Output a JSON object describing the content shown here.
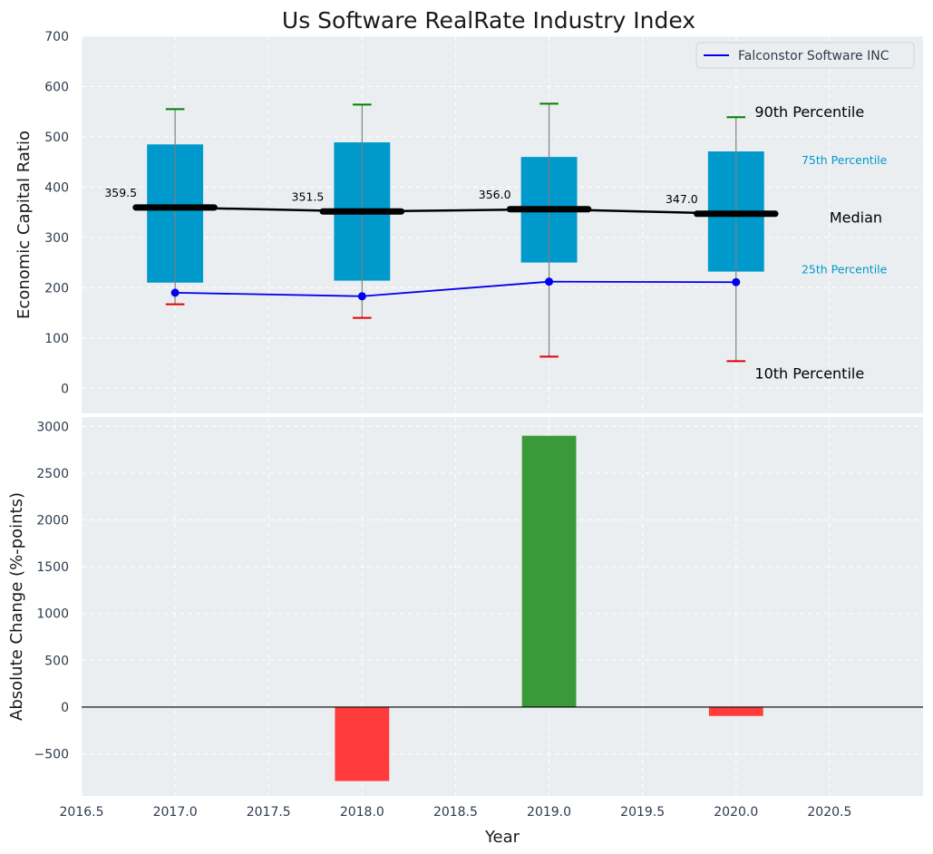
{
  "chart_data": [
    {
      "type": "box",
      "title": "Us Software RealRate Industry Index",
      "ylabel": "Economic Capital Ratio",
      "xlim": [
        2016.5,
        2021.0
      ],
      "ylim": [
        -50,
        700
      ],
      "yticks": [
        0,
        100,
        200,
        300,
        400,
        500,
        600,
        700
      ],
      "grid": true,
      "legend_placement": "top-right",
      "years": [
        2017,
        2018,
        2019,
        2020
      ],
      "p10": [
        167,
        140,
        63,
        54
      ],
      "p25": [
        210,
        214,
        250,
        232
      ],
      "median": [
        359.5,
        351.5,
        356.0,
        347.0
      ],
      "median_labels": [
        "359.5",
        "351.5",
        "356.0",
        "347.0"
      ],
      "p75": [
        485,
        489,
        460,
        471
      ],
      "p90": [
        555,
        564,
        566,
        539
      ],
      "series": [
        {
          "name": "Falconstor Software INC",
          "values": [
            190,
            183,
            212,
            211
          ],
          "color": "#0000ee"
        }
      ],
      "annotations": {
        "p90": "90th Percentile",
        "p75": "75th Percentile",
        "median": "Median",
        "p25": "25th Percentile",
        "p10": "10th Percentile"
      },
      "colors": {
        "box": "#0099cc",
        "median_line": "#000000",
        "p90_cap": "#008000",
        "p10_cap": "#e00000",
        "whisker": "#808080"
      }
    },
    {
      "type": "bar",
      "ylabel": "Absolute Change (%-points)",
      "xlabel": "Year",
      "xlim": [
        2016.5,
        2021.0
      ],
      "ylim": [
        -950,
        3100
      ],
      "yticks": [
        -500,
        0,
        500,
        1000,
        1500,
        2000,
        2500,
        3000
      ],
      "ytick_labels": [
        "−500",
        "0",
        "500",
        "1000",
        "1500",
        "2000",
        "2500",
        "3000"
      ],
      "xticks": [
        2016.5,
        2017.0,
        2017.5,
        2018.0,
        2018.5,
        2019.0,
        2019.5,
        2020.0,
        2020.5
      ],
      "xtick_labels": [
        "2016.5",
        "2017.0",
        "2017.5",
        "2018.0",
        "2018.5",
        "2019.0",
        "2019.5",
        "2020.0",
        "2020.5"
      ],
      "x": [
        2018,
        2019,
        2020
      ],
      "values": [
        -790,
        2900,
        -95
      ],
      "colors": {
        "positive": "#3a9a3a",
        "negative": "#ff3b3b",
        "zero_line": "#000000"
      }
    }
  ]
}
